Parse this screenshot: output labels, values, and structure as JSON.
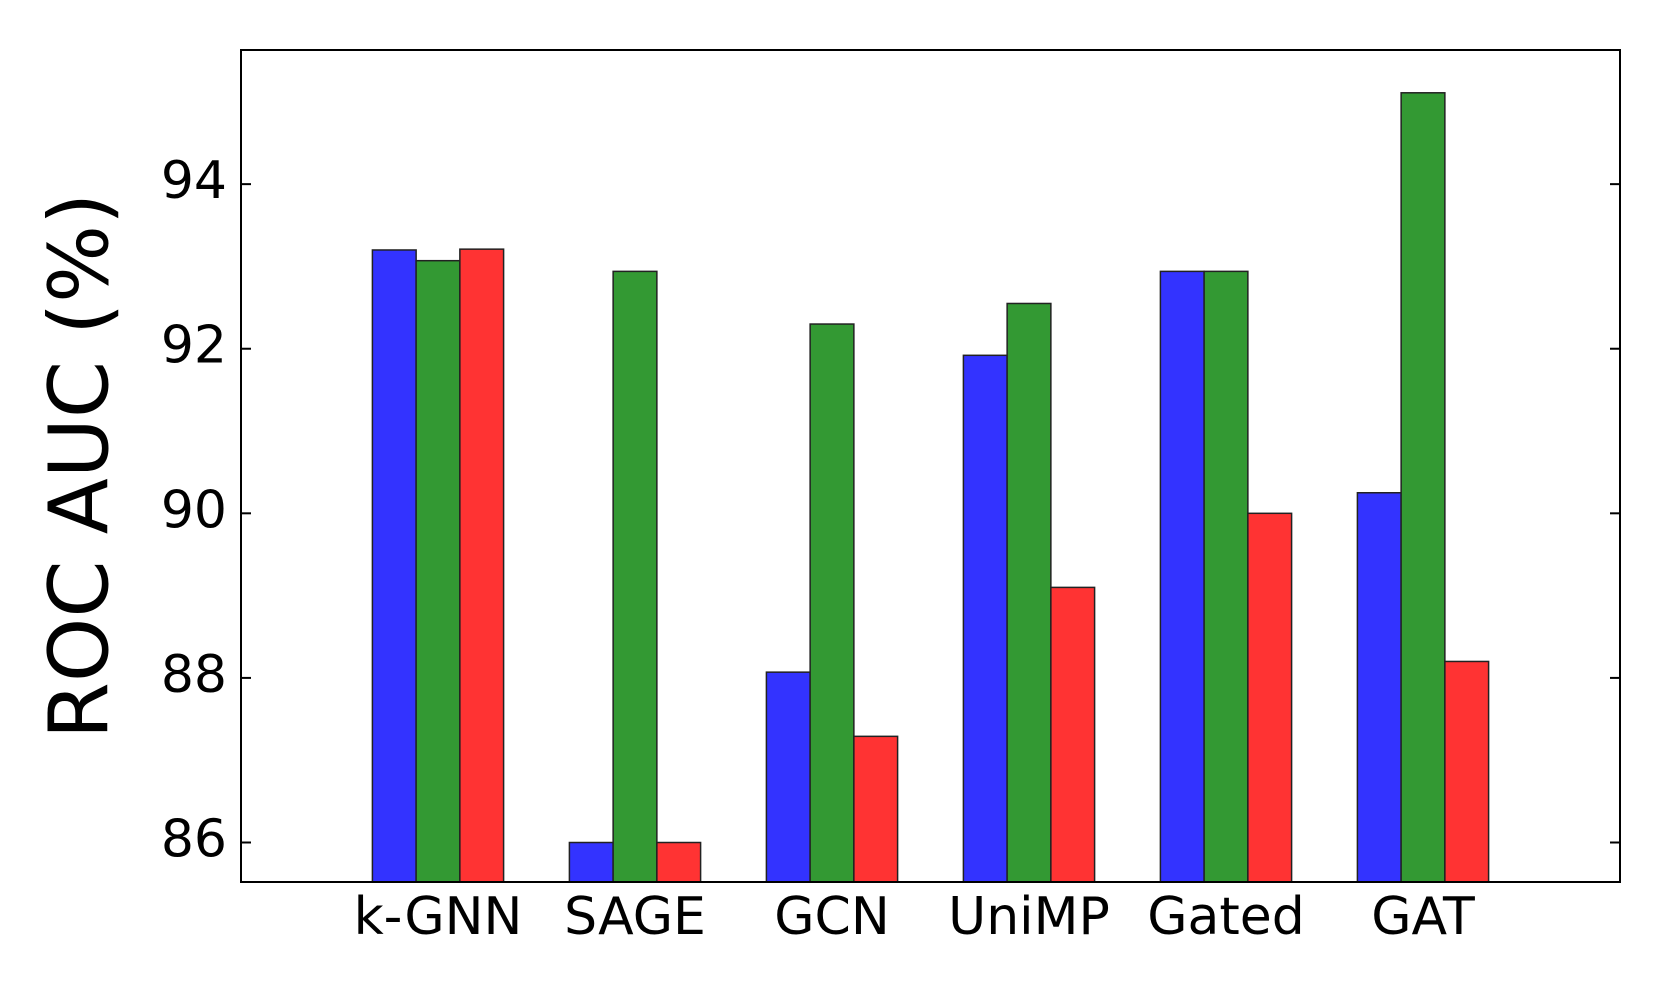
{
  "chart_data": {
    "type": "bar",
    "y_label": "ROC AUC (%)",
    "categories": [
      "k-GNN",
      "SAGE",
      "GCN",
      "UniMP",
      "Gated",
      "GAT"
    ],
    "series": [
      {
        "color": "#3333ff",
        "values": [
          93.2,
          86.0,
          88.07,
          91.92,
          92.94,
          90.25
        ]
      },
      {
        "color": "#339933",
        "values": [
          93.07,
          92.94,
          92.3,
          92.55,
          92.94,
          95.11
        ]
      },
      {
        "color": "#ff3333",
        "values": [
          93.21,
          86.0,
          87.29,
          89.1,
          90.0,
          88.2
        ]
      }
    ],
    "ylim": [
      85.52,
      95.63
    ],
    "yticks": [
      86,
      88,
      90,
      92,
      94
    ],
    "grid": false
  }
}
